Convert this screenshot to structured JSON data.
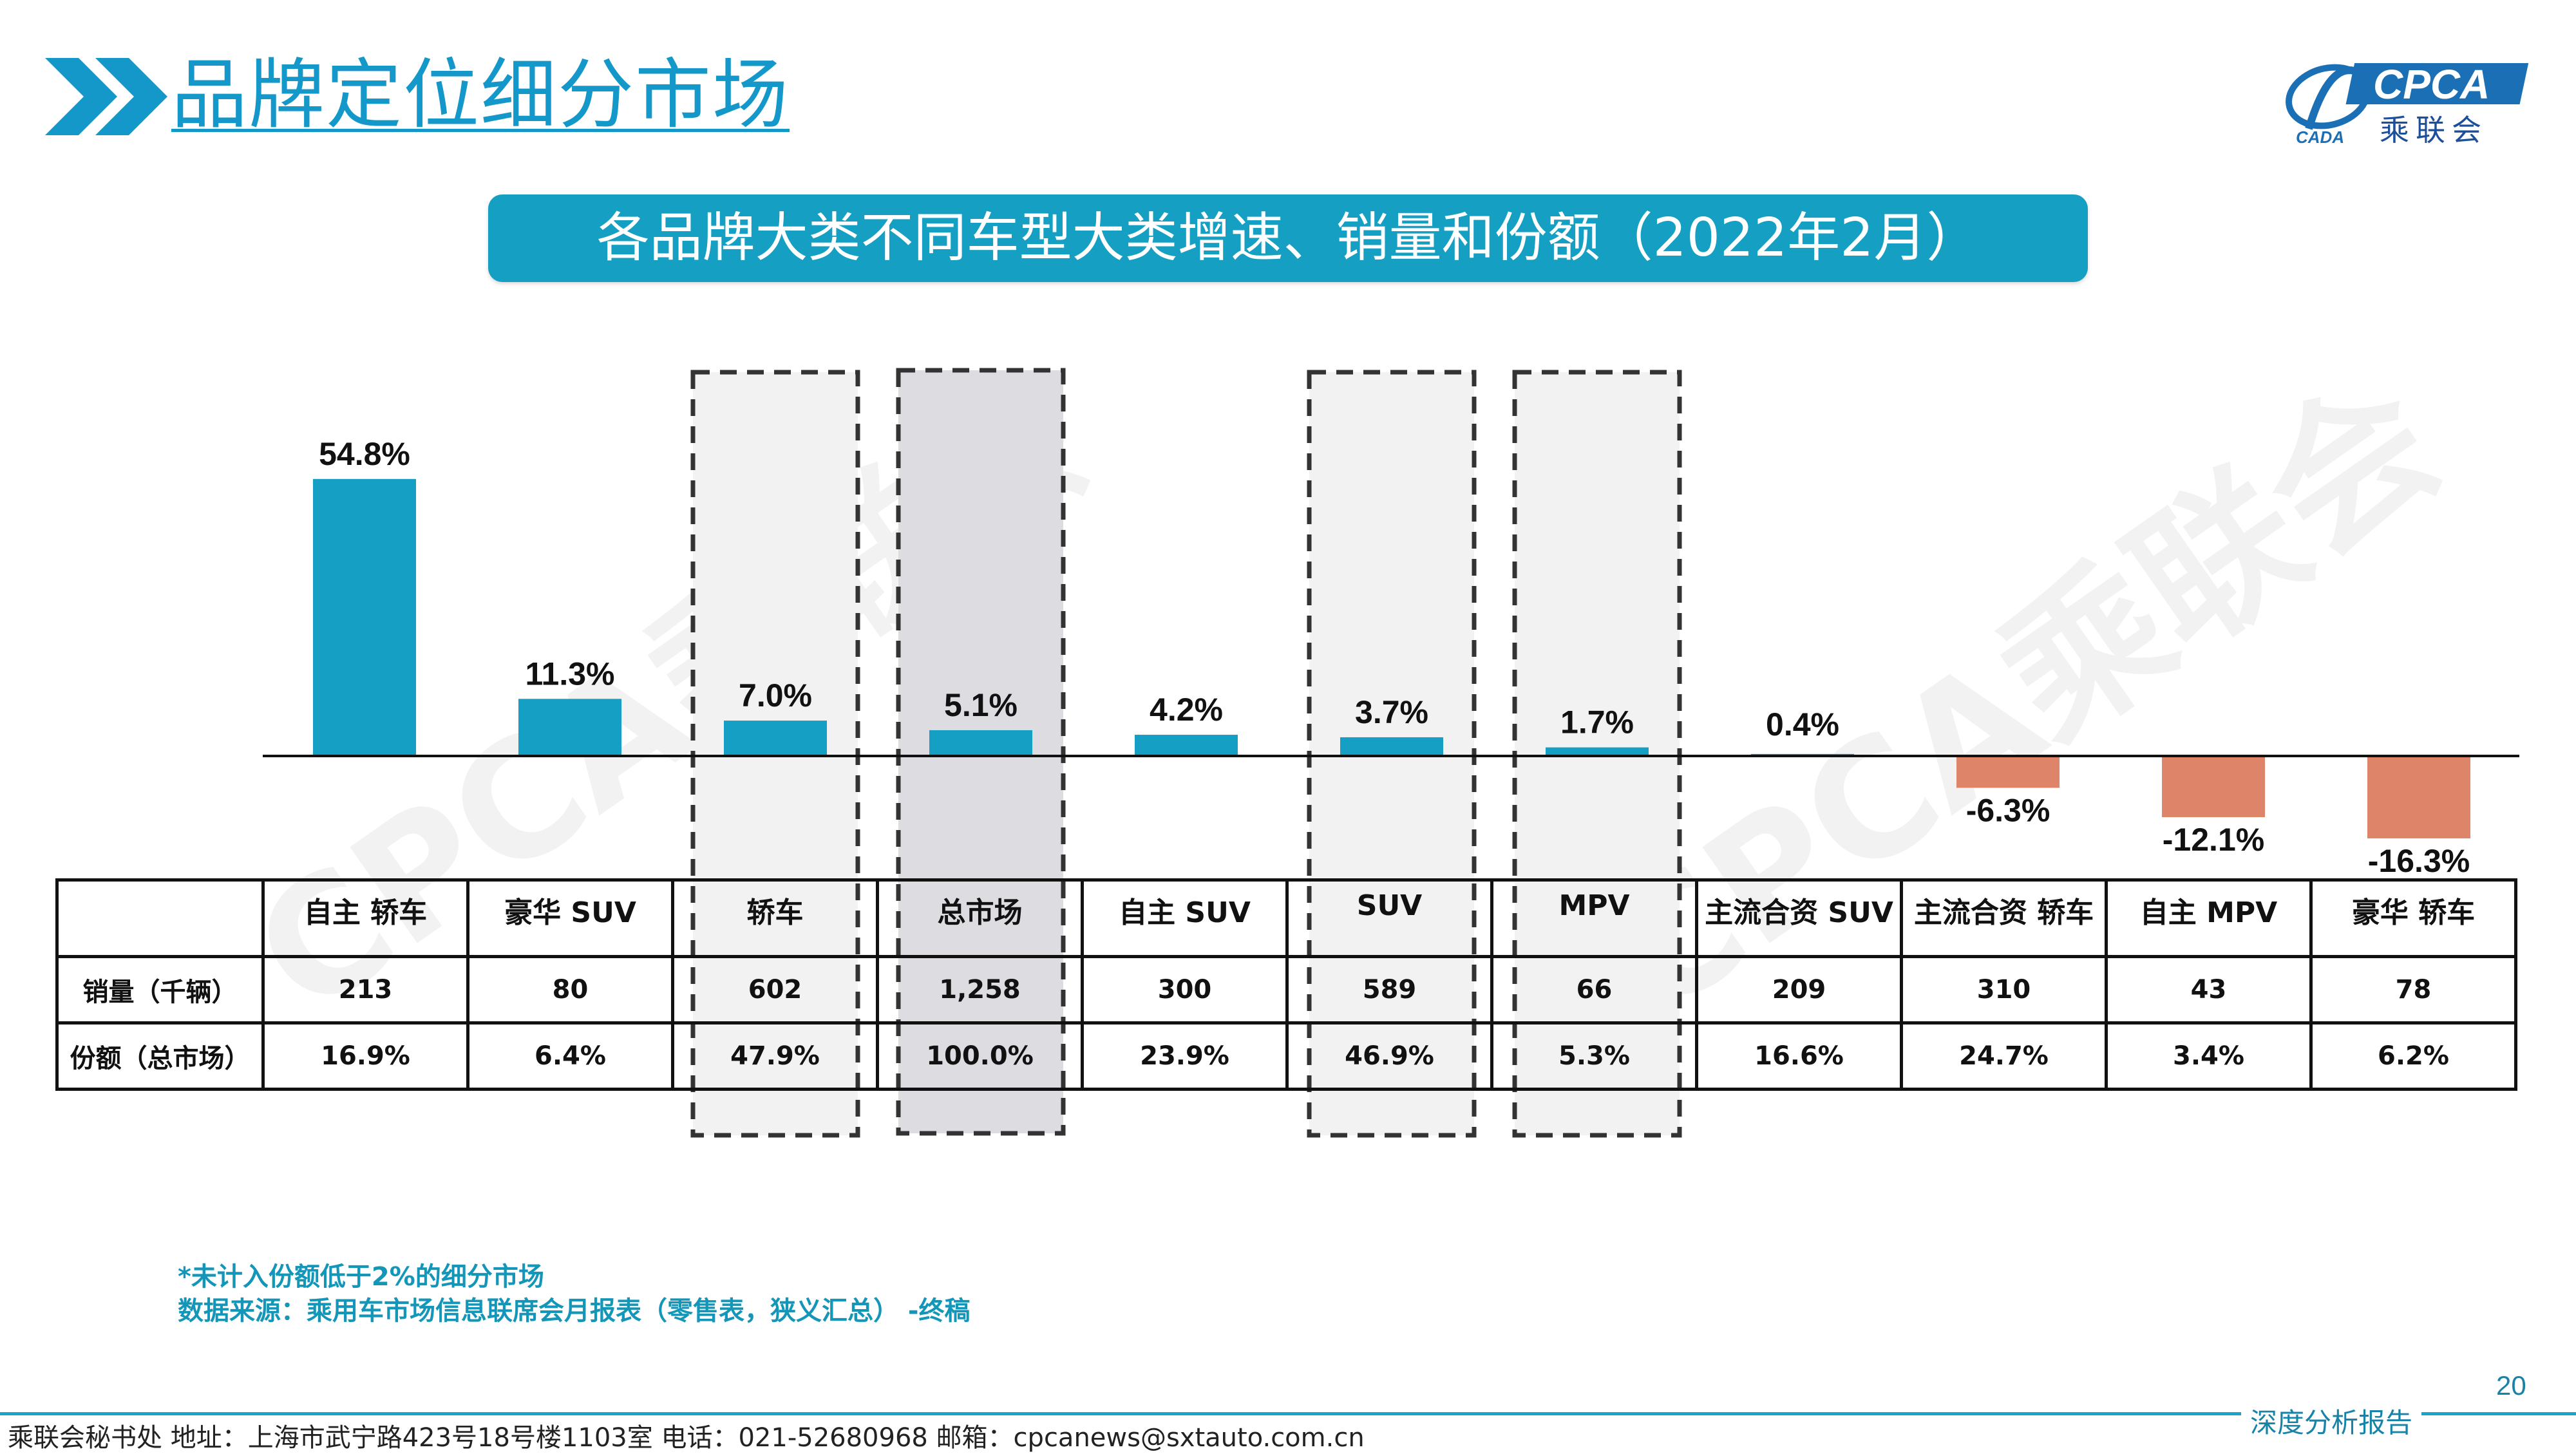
{
  "header": {
    "title": "品牌定位细分市场",
    "logo_text": "CPCA",
    "logo_cn": "乘联会",
    "logo_sub": "CADA"
  },
  "banner": {
    "title": "各品牌大类不同车型大类增速、销量和份额（2022年2月）"
  },
  "watermark": "CPCA乘联会",
  "colors": {
    "positive": "#169fc4",
    "negative": "#de8468",
    "accent": "#1497c9",
    "highlight_fill": "#dcdce1",
    "box_fill": "#f2f2f2"
  },
  "chart_data": {
    "type": "bar",
    "categories": [
      "自主 轿车",
      "豪华 SUV",
      "轿车",
      "总市场",
      "自主 SUV",
      "SUV",
      "MPV",
      "主流合资 SUV",
      "主流合资 轿车",
      "自主 MPV",
      "豪华 轿车"
    ],
    "values": [
      54.8,
      11.3,
      7.0,
      5.1,
      4.2,
      3.7,
      1.7,
      0.4,
      -6.3,
      -12.1,
      -16.3
    ],
    "labels": [
      "54.8%",
      "11.3%",
      "7.0%",
      "5.1%",
      "4.2%",
      "3.7%",
      "1.7%",
      "0.4%",
      "-6.3%",
      "-12.1%",
      "-16.3%"
    ],
    "highlighted": [
      "轿车",
      "总市场",
      "SUV",
      "MPV"
    ],
    "grid": false
  },
  "table": {
    "row_labels": [
      "销量（千辆）",
      "份额（总市场）"
    ],
    "sales": [
      "213",
      "80",
      "602",
      "1,258",
      "300",
      "589",
      "66",
      "209",
      "310",
      "43",
      "78"
    ],
    "share": [
      "16.9%",
      "6.4%",
      "47.9%",
      "100.0%",
      "23.9%",
      "46.9%",
      "5.3%",
      "16.6%",
      "24.7%",
      "3.4%",
      "6.2%"
    ]
  },
  "notes": {
    "line1": "*未计入份额低于2%的细分市场",
    "line2": "数据来源：乘用车市场信息联席会月报表（零售表，狭义汇总） -终稿"
  },
  "footer": {
    "text": "乘联会秘书处  地址：上海市武宁路423号18号楼1103室  电话：021-52680968  邮箱：cpcanews@sxtauto.com.cn",
    "label": "深度分析报告",
    "page": "20"
  }
}
